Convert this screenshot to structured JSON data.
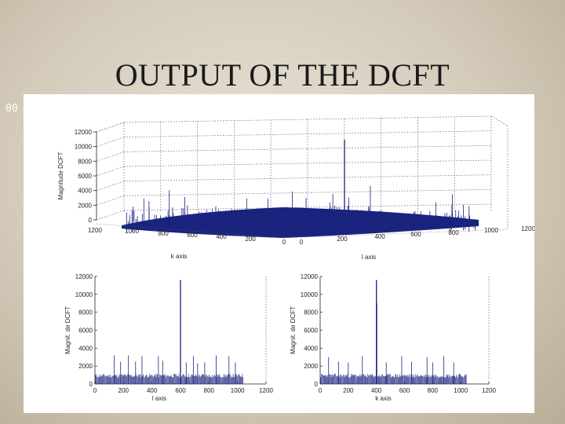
{
  "slide": {
    "title": "OUTPUT OF THE DCFT",
    "number": "00"
  },
  "colors": {
    "series": "#1a237e",
    "axis": "#222222",
    "grid": "#666666",
    "text": "#222222"
  },
  "chart_data": [
    {
      "type": "surface-3d",
      "zlabel": "Magnitude DCFT",
      "xlabel": "k axis",
      "ylabel": "l axis",
      "zticks": [
        0,
        2000,
        4000,
        6000,
        8000,
        10000,
        12000
      ],
      "zticks_text": [
        "0",
        "2000",
        "4000",
        "6000",
        "8000",
        "10000",
        "12000"
      ],
      "kticks_text": [
        "1200",
        "1000",
        "800",
        "600",
        "400",
        "200",
        "0"
      ],
      "lticks_text": [
        "0",
        "200",
        "400",
        "600",
        "800",
        "1000",
        "1200"
      ],
      "zlim": [
        0,
        12000
      ],
      "peak": {
        "k": 600,
        "l": 400,
        "z": 11500
      },
      "grid": true
    },
    {
      "type": "bar",
      "xlabel": "l axis",
      "ylabel": "Magnit. de DCFT",
      "xlim": [
        0,
        1200
      ],
      "ylim": [
        0,
        12000
      ],
      "xticks_text": [
        "0",
        "200",
        "400",
        "600",
        "800",
        "1000",
        "1200"
      ],
      "yticks_text": [
        "0",
        "2000",
        "4000",
        "6000",
        "8000",
        "10000",
        "12000"
      ],
      "baseline": 1000,
      "peaks": [
        {
          "x": 135,
          "y": 3200
        },
        {
          "x": 180,
          "y": 2500
        },
        {
          "x": 235,
          "y": 3200
        },
        {
          "x": 285,
          "y": 2500
        },
        {
          "x": 330,
          "y": 3100
        },
        {
          "x": 445,
          "y": 3100
        },
        {
          "x": 475,
          "y": 2600
        },
        {
          "x": 600,
          "y": 11600
        },
        {
          "x": 640,
          "y": 2400
        },
        {
          "x": 690,
          "y": 3100
        },
        {
          "x": 720,
          "y": 2300
        },
        {
          "x": 770,
          "y": 2400
        },
        {
          "x": 850,
          "y": 3200
        },
        {
          "x": 940,
          "y": 3100
        },
        {
          "x": 985,
          "y": 2400
        }
      ]
    },
    {
      "type": "bar",
      "xlabel": "k axis",
      "ylabel": "Magnit. de DCFT",
      "xlim": [
        0,
        1200
      ],
      "ylim": [
        0,
        12000
      ],
      "xticks_text": [
        "0",
        "200",
        "400",
        "600",
        "800",
        "1000",
        "1200"
      ],
      "yticks_text": [
        "0",
        "2000",
        "4000",
        "6000",
        "8000",
        "10000",
        "12000"
      ],
      "baseline": 1000,
      "peaks": [
        {
          "x": 60,
          "y": 3000
        },
        {
          "x": 130,
          "y": 2500
        },
        {
          "x": 200,
          "y": 2400
        },
        {
          "x": 300,
          "y": 3100
        },
        {
          "x": 400,
          "y": 11600
        },
        {
          "x": 402,
          "y": 9000
        },
        {
          "x": 470,
          "y": 2400
        },
        {
          "x": 580,
          "y": 3100
        },
        {
          "x": 650,
          "y": 2500
        },
        {
          "x": 760,
          "y": 3000
        },
        {
          "x": 800,
          "y": 2400
        },
        {
          "x": 880,
          "y": 3100
        },
        {
          "x": 950,
          "y": 2400
        }
      ]
    }
  ]
}
